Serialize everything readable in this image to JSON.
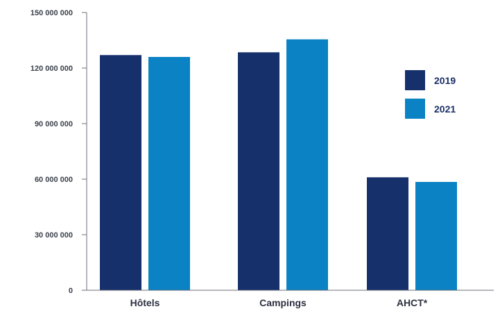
{
  "chart_data": {
    "type": "bar",
    "categories": [
      "Hôtels",
      "Campings",
      "AHCT*"
    ],
    "series": [
      {
        "name": "2019",
        "values": [
          127000000,
          128500000,
          61000000
        ]
      },
      {
        "name": "2021",
        "values": [
          126000000,
          135500000,
          58500000
        ]
      }
    ],
    "ylim": [
      0,
      150000000
    ],
    "yticks": [
      0,
      30000000,
      60000000,
      90000000,
      120000000,
      150000000
    ],
    "ytick_labels": [
      "0",
      "30 000 000",
      "60 000 000",
      "90 000 000",
      "120 000 000",
      "150 000 000"
    ],
    "legend_position": "right",
    "grid": false,
    "colors": {
      "2019": "#16306b",
      "2021": "#0a82c4"
    }
  }
}
